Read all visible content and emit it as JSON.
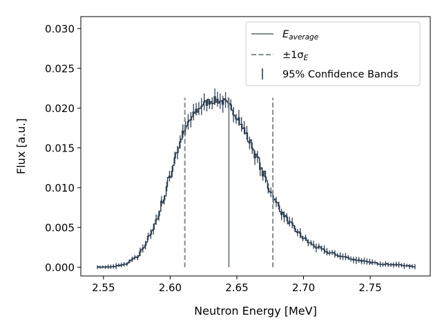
{
  "chart_data": {
    "type": "line",
    "title": "",
    "xlabel": "Neutron Energy [MeV]",
    "ylabel": "Flux [a.u.]",
    "xlim": [
      2.533,
      2.795
    ],
    "ylim": [
      -0.0011,
      0.0315
    ],
    "x_ticks": [
      2.55,
      2.6,
      2.65,
      2.7,
      2.75
    ],
    "x_tick_labels": [
      "2.55",
      "2.60",
      "2.65",
      "2.70",
      "2.75"
    ],
    "y_ticks": [
      0.0,
      0.005,
      0.01,
      0.015,
      0.02,
      0.025,
      0.03
    ],
    "y_tick_labels": [
      "0.000",
      "0.005",
      "0.010",
      "0.015",
      "0.020",
      "0.025",
      "0.030"
    ],
    "grid": false,
    "legend_position": "top-right",
    "legend": [
      {
        "kind": "solid",
        "base": "E",
        "sub": "average"
      },
      {
        "kind": "dashed",
        "prefix": "±1σ",
        "sub": "E"
      },
      {
        "kind": "errorbar",
        "label": "95% Confidence Bands"
      }
    ],
    "colors": {
      "spectrum": "#2c3e50",
      "reference": "#7f8c8d"
    },
    "e_average": 2.644,
    "sigma_lines": [
      2.611,
      2.677
    ],
    "reference_line_top": 0.0213,
    "spectrum_profile": {
      "x": [
        2.545,
        2.555,
        2.565,
        2.575,
        2.58,
        2.585,
        2.59,
        2.595,
        2.6,
        2.605,
        2.61,
        2.615,
        2.62,
        2.625,
        2.63,
        2.635,
        2.64,
        2.645,
        2.65,
        2.655,
        2.66,
        2.665,
        2.67,
        2.675,
        2.68,
        2.685,
        2.69,
        2.695,
        2.7,
        2.705,
        2.71,
        2.72,
        2.73,
        2.74,
        2.75,
        2.76,
        2.77,
        2.783
      ],
      "y": [
        0.0,
        3e-05,
        0.0003,
        0.0012,
        0.0025,
        0.004,
        0.006,
        0.0085,
        0.0115,
        0.0145,
        0.0168,
        0.0185,
        0.0197,
        0.0205,
        0.0209,
        0.021,
        0.0208,
        0.0202,
        0.019,
        0.0174,
        0.0157,
        0.0138,
        0.0117,
        0.0097,
        0.008,
        0.0066,
        0.0055,
        0.0045,
        0.0037,
        0.003,
        0.0025,
        0.0018,
        0.0013,
        0.0009,
        0.0006,
        0.0004,
        0.0003,
        0.0001
      ],
      "bin_width": 0.001,
      "confidence_half_width": 0.0006
    }
  }
}
